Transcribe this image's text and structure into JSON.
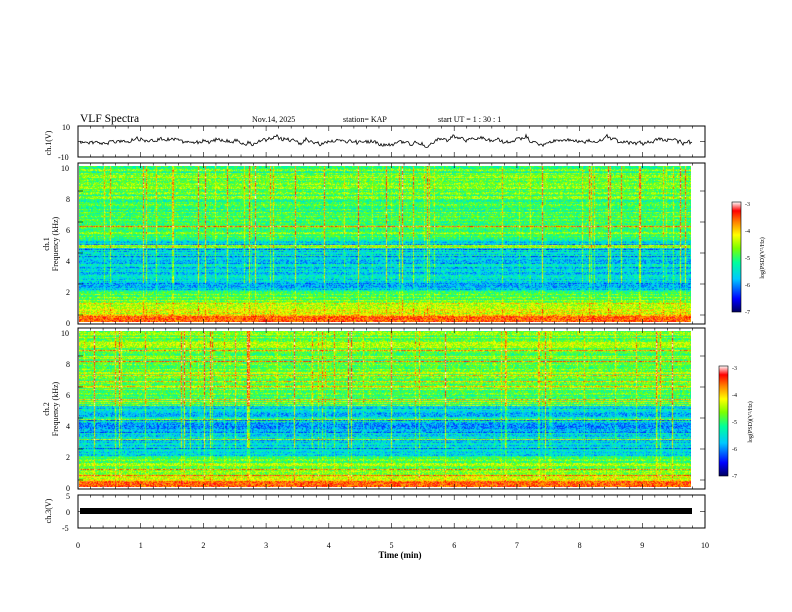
{
  "header": {
    "title": "VLF Spectra",
    "date": "Nov.14, 2025",
    "station": "station= KAP",
    "start": "start  UT =  1 : 30 : 1"
  },
  "chart_data": [
    {
      "id": "ch1-waveform",
      "type": "line",
      "ylabel": "ch.1(V)",
      "ylim": [
        -10,
        10
      ],
      "ytick_labels": [
        "10",
        "-10"
      ],
      "xlim": [
        0,
        10
      ]
    },
    {
      "id": "ch1-spectrogram",
      "type": "heatmap",
      "ylabel": "ch.1",
      "ylabel2": "Frequency  (kHz)",
      "ylim": [
        0,
        10
      ],
      "ytick_labels": [
        "0",
        "2",
        "4",
        "6",
        "8",
        "10"
      ],
      "colorbar": {
        "label": "log(PSD)(V²/Hz)",
        "range": [
          -7,
          -3
        ],
        "tick_labels": [
          "-3",
          "-4",
          "-5",
          "-6",
          "-7"
        ]
      }
    },
    {
      "id": "ch2-spectrogram",
      "type": "heatmap",
      "ylabel": "ch.2",
      "ylabel2": "Frequency  (kHz)",
      "ylim": [
        0,
        10
      ],
      "ytick_labels": [
        "0",
        "2",
        "4",
        "6",
        "8",
        "10"
      ],
      "colorbar": {
        "label": "log(PSD)(V²/Hz)",
        "range": [
          -7,
          -3
        ],
        "tick_labels": [
          "-3",
          "-4",
          "-5",
          "-6",
          "-7"
        ]
      }
    },
    {
      "id": "ch3-waveform",
      "type": "line",
      "ylabel": "ch.3(V)",
      "ylim": [
        -5,
        5
      ],
      "ytick_labels": [
        "5",
        "0",
        "-5"
      ],
      "xlim": [
        0,
        10
      ],
      "xlabel": "Time  (min)",
      "xtick_labels": [
        "0",
        "1",
        "2",
        "3",
        "4",
        "5",
        "6",
        "7",
        "8",
        "9",
        "10"
      ]
    }
  ],
  "colors": {
    "axis": "#000000",
    "trace": "#000000"
  }
}
